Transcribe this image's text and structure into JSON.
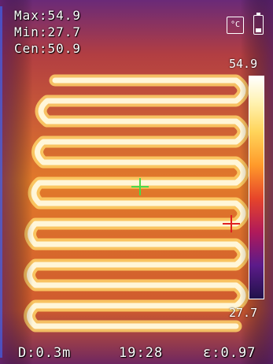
{
  "readouts": {
    "max": "Max:54.9",
    "min": "Min:27.7",
    "center": "Cen:50.9"
  },
  "scale": {
    "top": "54.9",
    "bottom": "27.7"
  },
  "status": {
    "distance": "D:0.3m",
    "time": "19:28",
    "emissivity": "ε:0.97"
  },
  "icons": {
    "unit": "temperature-unit-icon",
    "battery": "battery-icon"
  },
  "colors": {
    "center_cursor": "#4ad84a",
    "max_cursor": "#e02020"
  }
}
